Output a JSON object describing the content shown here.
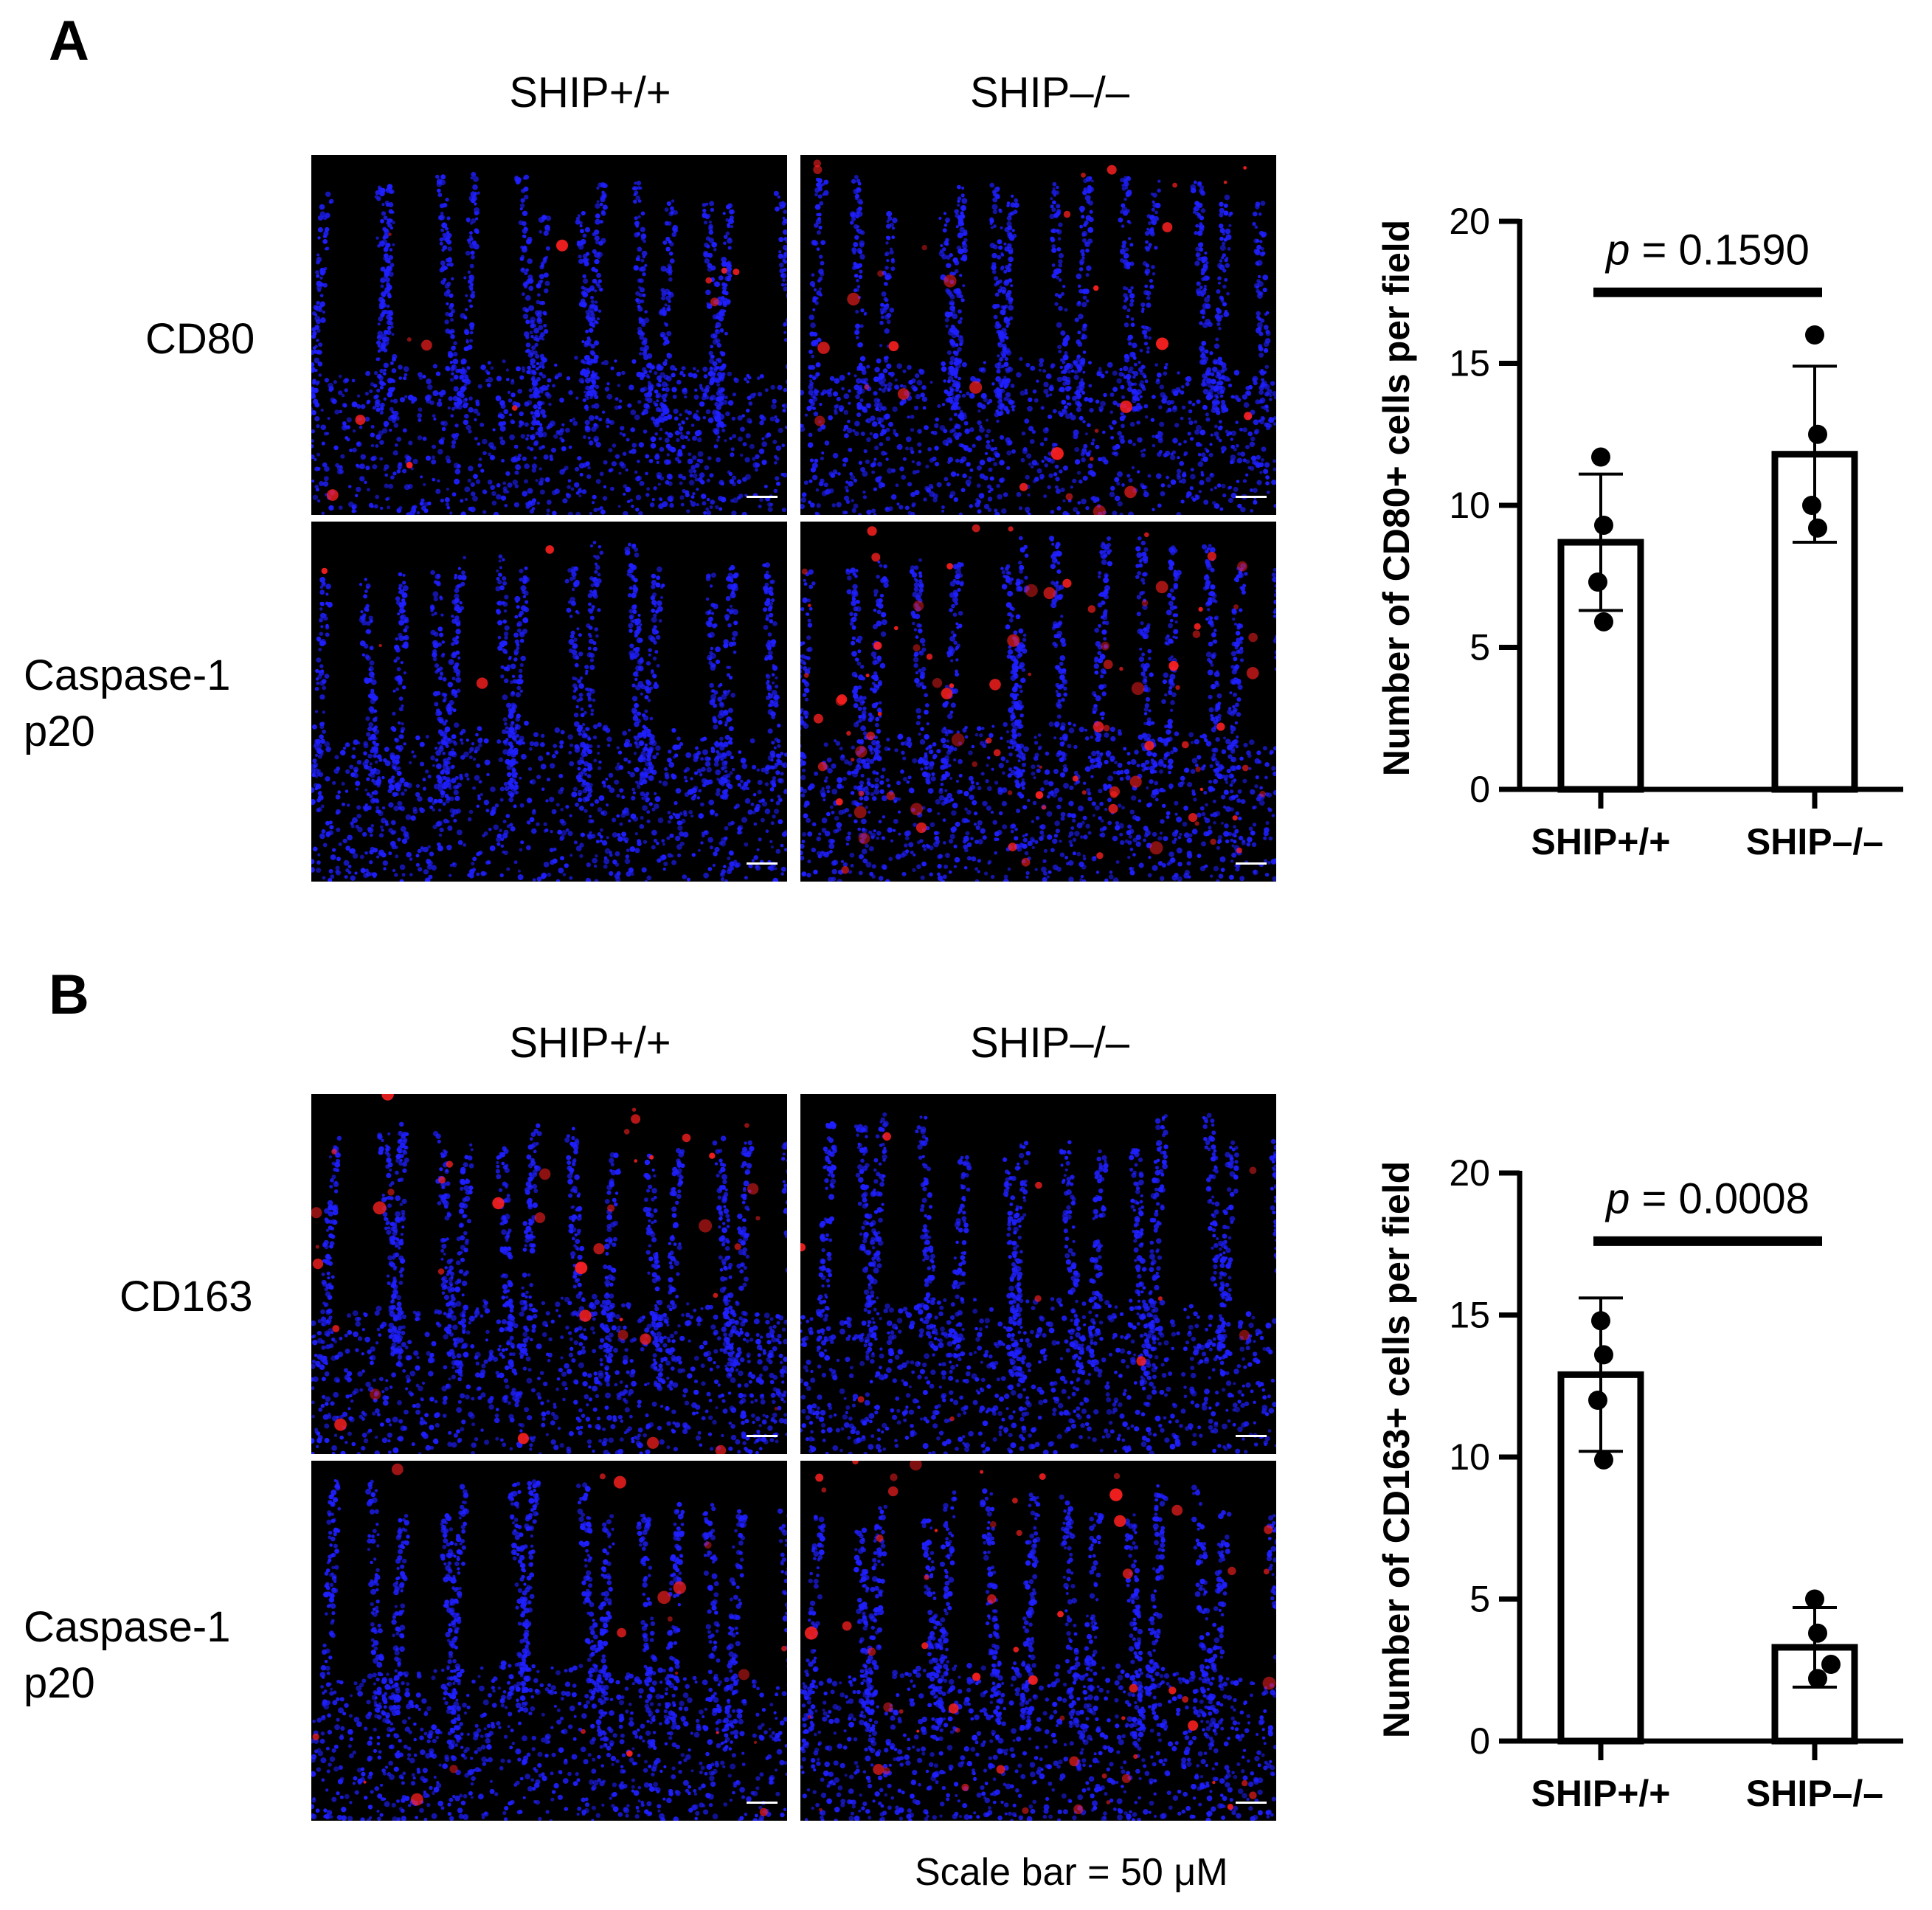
{
  "panels": [
    {
      "letter": "A",
      "columns": [
        "SHIP+/+",
        "SHIP–/–"
      ],
      "rows": [
        "CD80",
        "Caspase-1\np20"
      ]
    },
    {
      "letter": "B",
      "columns": [
        "SHIP+/+",
        "SHIP–/–"
      ],
      "rows": [
        "CD163",
        "Caspase-1\np20"
      ]
    }
  ],
  "scale_note": "Scale bar = 50 μM",
  "colors": {
    "nuclei": "#1f1fff",
    "marker": "#ff2020",
    "background": "#000000"
  },
  "chart_data": [
    {
      "type": "bar",
      "categories": [
        "SHIP+/+",
        "SHIP–/–"
      ],
      "values": [
        8.7,
        11.8
      ],
      "error": [
        2.4,
        3.1
      ],
      "points": [
        [
          11.7,
          9.3,
          7.3,
          5.9
        ],
        [
          16.0,
          12.5,
          10.0,
          9.2
        ]
      ],
      "ylabel": "Number of CD80+ cells per field",
      "ylim": [
        0,
        20
      ],
      "yticks": [
        0,
        5,
        10,
        15,
        20
      ],
      "annotation": {
        "italic": "p",
        "rest": " = 0.1590"
      }
    },
    {
      "type": "bar",
      "categories": [
        "SHIP+/+",
        "SHIP–/–"
      ],
      "values": [
        12.9,
        3.3
      ],
      "error": [
        2.7,
        1.4
      ],
      "points": [
        [
          14.8,
          13.6,
          12.0,
          9.9
        ],
        [
          5.0,
          3.8,
          2.7,
          2.2
        ]
      ],
      "ylabel": "Number of CD163+ cells per field",
      "ylim": [
        0,
        20
      ],
      "yticks": [
        0,
        5,
        10,
        15,
        20
      ],
      "annotation": {
        "italic": "p",
        "rest": " = 0.0008"
      }
    }
  ]
}
